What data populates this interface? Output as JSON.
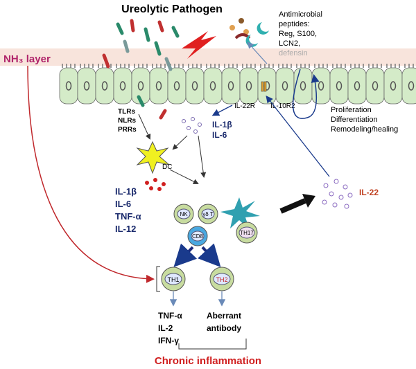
{
  "title": "Ureolytic Pathogen",
  "nh3_label": "NH₃ layer",
  "antimicrobial": {
    "lines": [
      "Antimicrobial",
      "peptides:",
      "Reg, S100,",
      "LCN2,"
    ],
    "faded": "defensin"
  },
  "receptors": [
    "IL-22R",
    "IL-10R2"
  ],
  "outcomes": [
    "Proliferation",
    "Differentiation",
    "Remodeling/healing"
  ],
  "pattern_receptors": [
    "TLRs",
    "NLRs",
    "PRRs"
  ],
  "epithelial_cytokines": [
    "IL-1β",
    "IL-6"
  ],
  "dc_label": "DC",
  "dc_cytokines": [
    "IL-1β",
    "IL-6",
    "TNF-α",
    "IL-12"
  ],
  "cells": {
    "nk": "NK",
    "gd_t": "γδ T",
    "th17": "TH17",
    "cd8": "CD8"
  },
  "il22": "IL-22",
  "th1": {
    "label": "TH1",
    "products": [
      "TNF-α",
      "IL-2",
      "IFN-γ"
    ]
  },
  "th2": {
    "label": "TH2",
    "products": [
      "Aberrant",
      "antibody"
    ]
  },
  "footer": "Chronic inflammation"
}
